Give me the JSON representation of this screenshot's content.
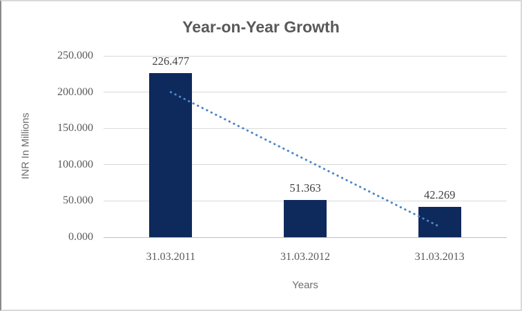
{
  "window": {
    "border_color": "#d9d9d9"
  },
  "chart_data": {
    "type": "bar",
    "title": "Year-on-Year Growth",
    "xlabel": "Years",
    "ylabel": "INR In Millions",
    "categories": [
      "31.03.2011",
      "31.03.2012",
      "31.03.2013"
    ],
    "values": [
      226.477,
      51.363,
      42.269
    ],
    "value_labels": [
      "226.477",
      "51.363",
      "42.269"
    ],
    "ylim": [
      0,
      250
    ],
    "yticks": [
      {
        "value": 0,
        "label": "0.000"
      },
      {
        "value": 50,
        "label": "50.000"
      },
      {
        "value": 100,
        "label": "100.000"
      },
      {
        "value": 150,
        "label": "150.000"
      },
      {
        "value": 200,
        "label": "200.000"
      },
      {
        "value": 250,
        "label": "250.000"
      }
    ],
    "grid": true,
    "legend": false,
    "bar_color": "#0e2a5c",
    "trendline": {
      "type": "linear",
      "style": "dotted",
      "color": "#4b87c8",
      "start_value": 200,
      "end_value": 14.5
    }
  }
}
